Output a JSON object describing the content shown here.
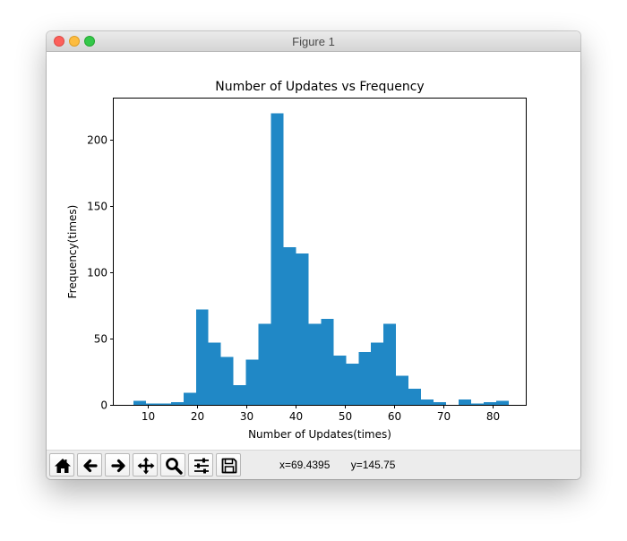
{
  "window": {
    "title": "Figure 1"
  },
  "toolbar": {
    "buttons": [
      {
        "name": "home-button",
        "icon": "home-icon"
      },
      {
        "name": "back-button",
        "icon": "back-arrow-icon"
      },
      {
        "name": "forward-button",
        "icon": "forward-arrow-icon"
      },
      {
        "name": "pan-button",
        "icon": "pan-move-icon"
      },
      {
        "name": "zoom-button",
        "icon": "zoom-magnifier-icon"
      },
      {
        "name": "configure-subplots-button",
        "icon": "sliders-icon"
      },
      {
        "name": "save-button",
        "icon": "floppy-disk-icon"
      }
    ],
    "coord_x": "x=69.4395",
    "coord_y": "y=145.75"
  },
  "chart_data": {
    "type": "bar",
    "title": "Number of Updates vs Frequency",
    "xlabel": "Number of Updates(times)",
    "ylabel": "Frequency(times)",
    "xlim": [
      3.0,
      86.7
    ],
    "ylim": [
      0,
      231
    ],
    "xticks": [
      10,
      20,
      30,
      40,
      50,
      60,
      70,
      80
    ],
    "yticks": [
      0,
      50,
      100,
      150,
      200
    ],
    "bin_start": 7.0,
    "bin_width": 2.54,
    "values": [
      3,
      1,
      1,
      2,
      9,
      72,
      47,
      36,
      15,
      34,
      61,
      220,
      119,
      114,
      61,
      65,
      37,
      31,
      40,
      47,
      61,
      22,
      12,
      4,
      2,
      0,
      4,
      1,
      2,
      3
    ],
    "bar_color": "#2088c6",
    "grid": false,
    "legend": "none"
  }
}
